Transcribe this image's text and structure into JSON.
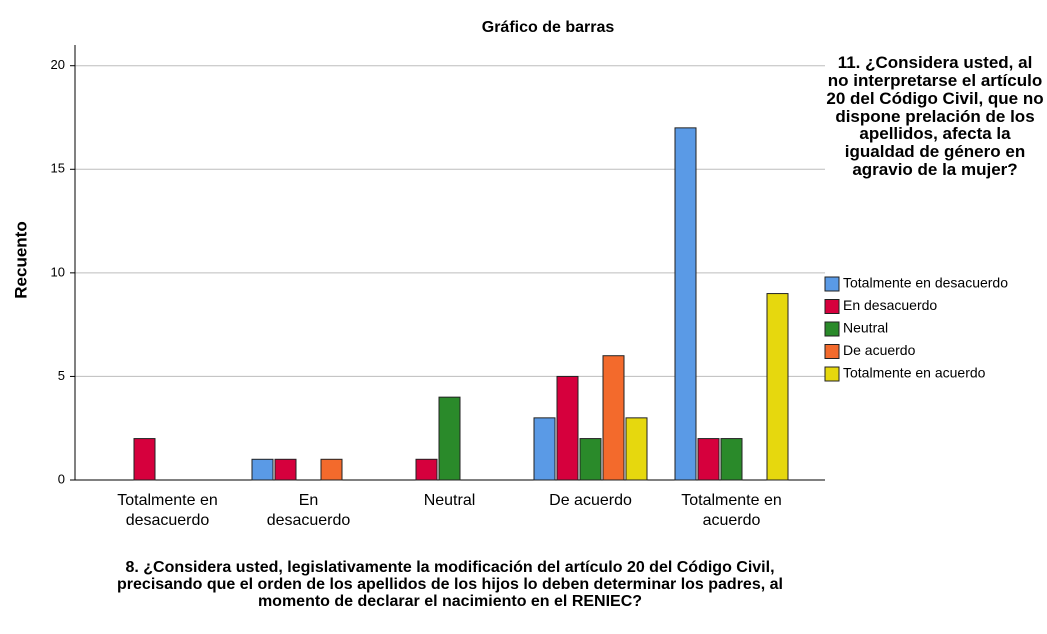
{
  "chart_data": {
    "type": "bar",
    "title": "Gráfico de barras",
    "x_label": "8. ¿Considera usted, legislativamente la modificación del artículo 20 del Código Civil, precisando que el orden de los apellidos de los hijos lo deben determinar los padres, al momento de declarar el nacimiento en el RENIEC?",
    "y_label": "Recuento",
    "legend_title": "11. ¿Considera usted, al no interpretarse el artículo 20 del Código Civil, que no dispone prelación de los apellidos, afecta la igualdad de género en agravio de la mujer?",
    "categories": [
      "Totalmente en desacuerdo",
      "En desacuerdo",
      "Neutral",
      "De acuerdo",
      "Totalmente en acuerdo"
    ],
    "series": [
      {
        "name": "Totalmente en desacuerdo",
        "color": "#5a9ae6",
        "values": [
          0,
          1,
          0,
          3,
          17
        ]
      },
      {
        "name": "En desacuerdo",
        "color": "#d6003d",
        "values": [
          2,
          1,
          1,
          5,
          2
        ]
      },
      {
        "name": "Neutral",
        "color": "#2a8a2a",
        "values": [
          0,
          0,
          4,
          2,
          2
        ]
      },
      {
        "name": "De acuerdo",
        "color": "#f36a2c",
        "values": [
          0,
          1,
          0,
          6,
          0
        ]
      },
      {
        "name": "Totalmente en acuerdo",
        "color": "#e6d80e",
        "values": [
          0,
          0,
          0,
          3,
          9
        ]
      }
    ],
    "ylim": [
      0,
      21
    ],
    "yticks": [
      0,
      5,
      10,
      15,
      20
    ],
    "grid": true
  }
}
